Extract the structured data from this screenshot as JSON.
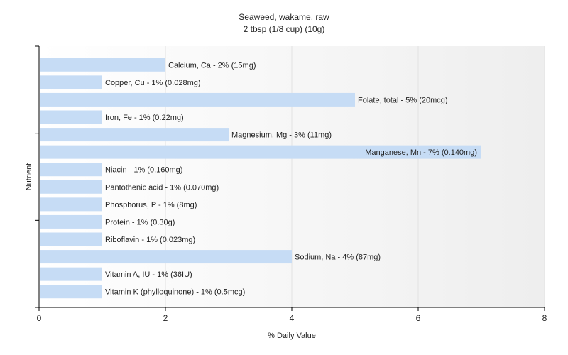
{
  "chart_data": {
    "type": "bar",
    "orientation": "horizontal",
    "title": "Seaweed, wakame, raw",
    "subtitle": "2 tbsp (1/8 cup) (10g)",
    "xlabel": "% Daily Value",
    "ylabel": "Nutrient",
    "xlim": [
      0,
      8
    ],
    "xticks": [
      "0",
      "2",
      "4",
      "6",
      "8"
    ],
    "grid": true,
    "bar_color": "#c6dcf5",
    "categories": [
      "Calcium, Ca",
      "Copper, Cu",
      "Folate, total",
      "Iron, Fe",
      "Magnesium, Mg",
      "Manganese, Mn",
      "Niacin",
      "Pantothenic acid",
      "Phosphorus, P",
      "Protein",
      "Riboflavin",
      "Sodium, Na",
      "Vitamin A, IU",
      "Vitamin K (phylloquinone)"
    ],
    "values": [
      2,
      1,
      5,
      1,
      3,
      7,
      1,
      1,
      1,
      1,
      1,
      4,
      1,
      1
    ],
    "labels": [
      "Calcium, Ca - 2% (15mg)",
      "Copper, Cu - 1% (0.028mg)",
      "Folate, total - 5% (20mcg)",
      "Iron, Fe - 1% (0.22mg)",
      "Magnesium, Mg - 3% (11mg)",
      "Manganese, Mn - 7% (0.140mg)",
      "Niacin - 1% (0.160mg)",
      "Pantothenic acid - 1% (0.070mg)",
      "Phosphorus, P - 1% (8mg)",
      "Protein - 1% (0.30g)",
      "Riboflavin - 1% (0.023mg)",
      "Sodium, Na - 4% (87mg)",
      "Vitamin A, IU - 1% (36IU)",
      "Vitamin K (phylloquinone) - 1% (0.5mcg)"
    ]
  }
}
